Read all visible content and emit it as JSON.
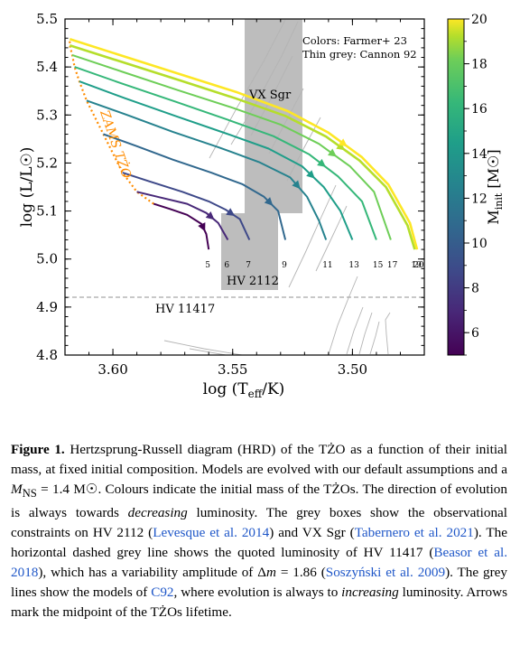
{
  "chart_data": {
    "type": "line",
    "xlabel": "log (T_eff/K)",
    "xlabel_parts": {
      "pre": "log (T",
      "sub": "eff",
      "post": "/K)"
    },
    "ylabel": "log (L/L☉)",
    "xlim": [
      3.62,
      3.47
    ],
    "x_inverted": true,
    "ylim": [
      4.8,
      5.5
    ],
    "xticks": [
      "3.60",
      "3.55",
      "3.50"
    ],
    "yticks": [
      "4.8",
      "4.9",
      "5.0",
      "5.1",
      "5.2",
      "5.3",
      "5.4",
      "5.5"
    ],
    "colorbar": {
      "label": "M_init [M☉]",
      "label_parts": {
        "pre": "M",
        "sub": "init",
        "post": " [M☉]"
      },
      "range": [
        5,
        20
      ],
      "ticks": [
        "6",
        "8",
        "10",
        "12",
        "14",
        "16",
        "18",
        "20"
      ],
      "colormap": "viridis"
    },
    "legend_text": [
      "Colors: Farmer+ 23",
      "Thin grey: Cannon 92"
    ],
    "zams_label": "ZAMS TŻO",
    "zams_color": "#ff8c00",
    "observations": [
      {
        "name": "VX Sgr",
        "label": "VX Sgr",
        "teff": [
          3.524,
          3.559
        ],
        "logL": [
          5.1,
          5.5
        ]
      },
      {
        "name": "HV 2112",
        "label": "HV 2112",
        "teff": [
          3.532,
          3.553
        ],
        "logL": [
          4.94,
          5.1
        ]
      },
      {
        "name": "HV 11417",
        "label": "HV 11417",
        "logL": 4.92
      }
    ],
    "series": [
      {
        "mass": 5,
        "label": "5",
        "color": "#440154",
        "points": [
          [
            3.583,
            5.115
          ],
          [
            3.576,
            5.104
          ],
          [
            3.569,
            5.092
          ],
          [
            3.563,
            5.073
          ],
          [
            3.561,
            5.052
          ],
          [
            3.56,
            5.02
          ]
        ],
        "arrow_index": 3
      },
      {
        "mass": 6,
        "label": "6",
        "color": "#482878",
        "points": [
          [
            3.59,
            5.14
          ],
          [
            3.58,
            5.128
          ],
          [
            3.569,
            5.115
          ],
          [
            3.561,
            5.096
          ],
          [
            3.556,
            5.075
          ],
          [
            3.552,
            5.04
          ]
        ],
        "arrow_index": 3
      },
      {
        "mass": 7,
        "label": "7",
        "color": "#3e4989",
        "points": [
          [
            3.596,
            5.18
          ],
          [
            3.585,
            5.162
          ],
          [
            3.571,
            5.14
          ],
          [
            3.56,
            5.12
          ],
          [
            3.553,
            5.103
          ],
          [
            3.547,
            5.083
          ],
          [
            3.543,
            5.04
          ]
        ],
        "arrow_index": 4
      },
      {
        "mass": 9,
        "label": "9",
        "color": "#31688e",
        "points": [
          [
            3.604,
            5.26
          ],
          [
            3.59,
            5.235
          ],
          [
            3.575,
            5.207
          ],
          [
            3.559,
            5.18
          ],
          [
            3.546,
            5.156
          ],
          [
            3.537,
            5.13
          ],
          [
            3.531,
            5.1
          ],
          [
            3.528,
            5.04
          ]
        ],
        "arrow_index": 5
      },
      {
        "mass": 11,
        "label": "11",
        "color": "#26828e",
        "points": [
          [
            3.611,
            5.33
          ],
          [
            3.594,
            5.3
          ],
          [
            3.575,
            5.265
          ],
          [
            3.556,
            5.233
          ],
          [
            3.539,
            5.202
          ],
          [
            3.526,
            5.17
          ],
          [
            3.519,
            5.13
          ],
          [
            3.514,
            5.08
          ],
          [
            3.511,
            5.04
          ]
        ],
        "arrow_index": 5
      },
      {
        "mass": 13,
        "label": "13",
        "color": "#1f9e89",
        "points": [
          [
            3.614,
            5.37
          ],
          [
            3.595,
            5.335
          ],
          [
            3.574,
            5.298
          ],
          [
            3.553,
            5.262
          ],
          [
            3.535,
            5.23
          ],
          [
            3.521,
            5.193
          ],
          [
            3.512,
            5.15
          ],
          [
            3.505,
            5.1
          ],
          [
            3.5,
            5.04
          ]
        ],
        "arrow_index": 5
      },
      {
        "mass": 15,
        "label": "15",
        "color": "#35b779",
        "points": [
          [
            3.616,
            5.4
          ],
          [
            3.596,
            5.365
          ],
          [
            3.574,
            5.328
          ],
          [
            3.552,
            5.29
          ],
          [
            3.533,
            5.256
          ],
          [
            3.518,
            5.218
          ],
          [
            3.506,
            5.172
          ],
          [
            3.496,
            5.12
          ],
          [
            3.49,
            5.04
          ]
        ],
        "arrow_index": 5
      },
      {
        "mass": 17,
        "label": "17",
        "color": "#6ece58",
        "points": [
          [
            3.617,
            5.425
          ],
          [
            3.596,
            5.39
          ],
          [
            3.573,
            5.352
          ],
          [
            3.55,
            5.315
          ],
          [
            3.53,
            5.28
          ],
          [
            3.514,
            5.24
          ],
          [
            3.501,
            5.193
          ],
          [
            3.491,
            5.14
          ],
          [
            3.484,
            5.04
          ]
        ],
        "arrow_index": 5
      },
      {
        "mass": 19,
        "label": "19",
        "color": "#b5de2b",
        "points": [
          [
            3.618,
            5.445
          ],
          [
            3.596,
            5.41
          ],
          [
            3.572,
            5.372
          ],
          [
            3.549,
            5.335
          ],
          [
            3.528,
            5.298
          ],
          [
            3.511,
            5.255
          ],
          [
            3.497,
            5.205
          ],
          [
            3.486,
            5.15
          ],
          [
            3.477,
            5.07
          ],
          [
            3.474,
            5.02
          ]
        ],
        "arrow_index": 5
      },
      {
        "mass": 20,
        "label": "20",
        "color": "#fde725",
        "points": [
          [
            3.618,
            5.458
          ],
          [
            3.596,
            5.423
          ],
          [
            3.572,
            5.385
          ],
          [
            3.548,
            5.347
          ],
          [
            3.527,
            5.308
          ],
          [
            3.51,
            5.263
          ],
          [
            3.496,
            5.212
          ],
          [
            3.485,
            5.155
          ],
          [
            3.476,
            5.075
          ],
          [
            3.473,
            5.02
          ]
        ],
        "arrow_index": 5
      }
    ]
  },
  "caption": {
    "label": "Figure 1.",
    "t1": " Hertzsprung-Russell diagram (HRD) of the TŻO as a function of their initial mass, at fixed initial composition. Models are evolved with our default assumptions and a ",
    "mns": "M",
    "mns_sub": "NS",
    "t2": " = 1.4 M☉. Colours indicate the initial mass of the TŻOs. The direction of evolution is always towards ",
    "em1": "decreasing",
    "t3": " luminosity. The grey boxes show the observational constraints on HV 2112 (",
    "ref1": "Levesque et al. 2014",
    "t4": ") and VX Sgr (",
    "ref2": "Tabernero et al. 2021",
    "t5": "). The horizontal dashed grey line shows the quoted luminosity of HV 11417 (",
    "ref3": "Beasor et al. 2018",
    "t6": "), which has a variability amplitude of Δ",
    "m": "m",
    "t7": " = 1.86 (",
    "ref4": "Soszyński et al. 2009",
    "t8": "). The grey lines show the models of ",
    "ref5": "C92",
    "t9": ", where evolution is always to ",
    "em2": "increasing",
    "t10": " luminosity. Arrows mark the midpoint of the TŻOs lifetime."
  }
}
